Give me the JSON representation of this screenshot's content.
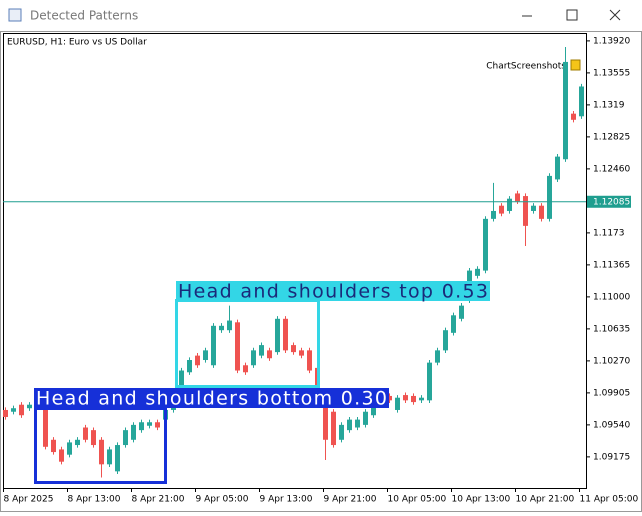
{
  "window": {
    "title": "Detected Patterns"
  },
  "chart_data": {
    "type": "candlestick",
    "symbol_label": "EURUSD, H1:  Euro vs US Dollar",
    "badge": "ChartScreenshots",
    "categories": [
      "8 Apr 2025",
      null,
      null,
      null,
      null,
      null,
      null,
      null,
      "8 Apr 13:00",
      null,
      null,
      null,
      null,
      null,
      null,
      null,
      "8 Apr 21:00",
      null,
      null,
      null,
      null,
      null,
      null,
      null,
      "9 Apr 05:00",
      null,
      null,
      null,
      null,
      null,
      null,
      null,
      "9 Apr 13:00",
      null,
      null,
      null,
      null,
      null,
      null,
      null,
      "9 Apr 21:00",
      null,
      null,
      null,
      null,
      null,
      null,
      null,
      "10 Apr 05:00",
      null,
      null,
      null,
      null,
      null,
      null,
      null,
      "10 Apr 13:00",
      null,
      null,
      null,
      null,
      null,
      null,
      null,
      "10 Apr 21:00",
      null,
      null,
      null,
      null,
      null,
      null,
      null,
      "11 Apr 05:00"
    ],
    "open": [
      1.0971,
      1.0969,
      1.0977,
      1.0973,
      1.0977,
      1.0979,
      1.0937,
      1.0926,
      1.092,
      1.0931,
      1.0951,
      1.0948,
      1.0937,
      1.0909,
      1.0901,
      1.0931,
      1.0937,
      1.0948,
      1.0953,
      1.0957,
      1.096,
      1.0971,
      1.0999,
      1.1014,
      1.1033,
      1.1028,
      1.1022,
      1.1062,
      1.1062,
      1.1071,
      1.1022,
      1.1022,
      1.1033,
      1.1039,
      1.1037,
      1.1075,
      1.1045,
      1.1039,
      1.1039,
      1.1019,
      1.0982,
      1.0969,
      1.0937,
      1.0948,
      1.0951,
      1.0954,
      1.0965,
      1.0977,
      1.0987,
      1.0971,
      1.0988,
      1.0987,
      1.0982,
      1.0982,
      1.1025,
      1.1039,
      1.1059,
      1.1075,
      1.1096,
      1.1124,
      1.113,
      1.1189,
      1.1204,
      1.1198,
      1.1218,
      1.1215,
      1.1198,
      1.1204,
      1.1189,
      1.1234,
      1.1257,
      1.1309,
      1.1306
    ],
    "high": [
      1.0974,
      1.0976,
      1.098,
      1.098,
      1.0982,
      1.0982,
      1.094,
      1.0929,
      1.0937,
      1.094,
      1.0954,
      1.0951,
      1.094,
      1.0929,
      1.0934,
      1.0951,
      1.0957,
      1.096,
      1.096,
      1.096,
      1.0974,
      1.0985,
      1.1019,
      1.1031,
      1.1036,
      1.1042,
      1.107,
      1.107,
      1.109,
      1.1074,
      1.1025,
      1.1042,
      1.1048,
      1.1042,
      1.1078,
      1.1078,
      1.1048,
      1.1042,
      1.1042,
      1.1022,
      1.0985,
      1.0972,
      1.0957,
      1.0963,
      1.0963,
      1.0972,
      1.0985,
      1.0988,
      1.099,
      1.0988,
      1.0991,
      1.099,
      1.0988,
      1.1028,
      1.1042,
      1.1065,
      1.1082,
      1.1093,
      1.1133,
      1.1135,
      1.1192,
      1.123,
      1.1207,
      1.1215,
      1.1221,
      1.1218,
      1.1207,
      1.1207,
      1.1241,
      1.1263,
      1.1385,
      1.1312,
      1.1343
    ],
    "low": [
      1.096,
      1.0966,
      1.0962,
      1.097,
      1.0974,
      1.0926,
      1.092,
      1.0909,
      1.0917,
      1.0928,
      1.0934,
      1.0928,
      1.0894,
      1.0906,
      1.0898,
      1.0928,
      1.0934,
      1.0945,
      1.095,
      1.0948,
      1.0957,
      1.0968,
      1.0996,
      1.1011,
      1.1019,
      1.1025,
      1.1019,
      1.1059,
      1.1059,
      1.1013,
      1.1011,
      1.1019,
      1.103,
      1.1027,
      1.1034,
      1.1036,
      1.1034,
      1.103,
      1.1013,
      1.0996,
      1.0914,
      1.0928,
      1.0934,
      1.0945,
      1.0948,
      1.0951,
      1.0962,
      1.0974,
      1.0979,
      1.0968,
      1.0979,
      1.0977,
      1.0979,
      1.0979,
      1.1022,
      1.1036,
      1.1056,
      1.1072,
      1.1093,
      1.1121,
      1.1127,
      1.1186,
      1.1192,
      1.1195,
      1.1206,
      1.1158,
      1.1195,
      1.1186,
      1.1186,
      1.1231,
      1.1254,
      1.1299,
      1.1303
    ],
    "close": [
      1.0963,
      1.0973,
      1.0965,
      1.0977,
      1.0979,
      1.0929,
      1.0923,
      1.0912,
      1.0934,
      1.0937,
      1.0937,
      1.0931,
      1.0909,
      1.0926,
      1.0931,
      1.0948,
      1.0954,
      1.0957,
      1.0957,
      1.0951,
      1.0971,
      1.0982,
      1.1016,
      1.1028,
      1.1022,
      1.1039,
      1.1067,
      1.1067,
      1.1073,
      1.1016,
      1.1014,
      1.1039,
      1.1045,
      1.103,
      1.1075,
      1.1039,
      1.1037,
      1.1033,
      1.1016,
      1.0999,
      1.0937,
      1.0931,
      1.0954,
      1.096,
      1.096,
      1.0969,
      1.0982,
      1.0985,
      1.0982,
      1.0985,
      1.0982,
      1.098,
      1.0985,
      1.1025,
      1.1039,
      1.1062,
      1.1079,
      1.109,
      1.113,
      1.1132,
      1.1189,
      1.1198,
      1.1195,
      1.1212,
      1.1209,
      1.1181,
      1.1204,
      1.1189,
      1.1238,
      1.126,
      1.1368,
      1.1302,
      1.134
    ],
    "up_color": "#26a69a",
    "down_color": "#ef5350",
    "ylim": [
      1.0882,
      1.1401
    ],
    "yticks": [
      {
        "value": 1.1392,
        "label": "1.13920"
      },
      1.13555,
      1.1319,
      {
        "value": 1.12825,
        "label": "1.12825"
      },
      {
        "value": 1.1246,
        "label": "1.12460"
      },
      1.1173,
      1.11365,
      {
        "value": 1.11,
        "label": "1.11000"
      },
      1.10635,
      {
        "value": 1.1027,
        "label": "1.10270"
      },
      1.09905,
      {
        "value": 1.0954,
        "label": "1.09540"
      },
      1.09175
    ],
    "current_price": 1.12085,
    "current_color": "#1f9e8f",
    "annotations": [
      {
        "text": "Head and shoulders top 0.53",
        "color": "#33d6e6"
      },
      {
        "text": "Head and shoulders bottom 0.30",
        "color": "#1630d8"
      }
    ]
  }
}
